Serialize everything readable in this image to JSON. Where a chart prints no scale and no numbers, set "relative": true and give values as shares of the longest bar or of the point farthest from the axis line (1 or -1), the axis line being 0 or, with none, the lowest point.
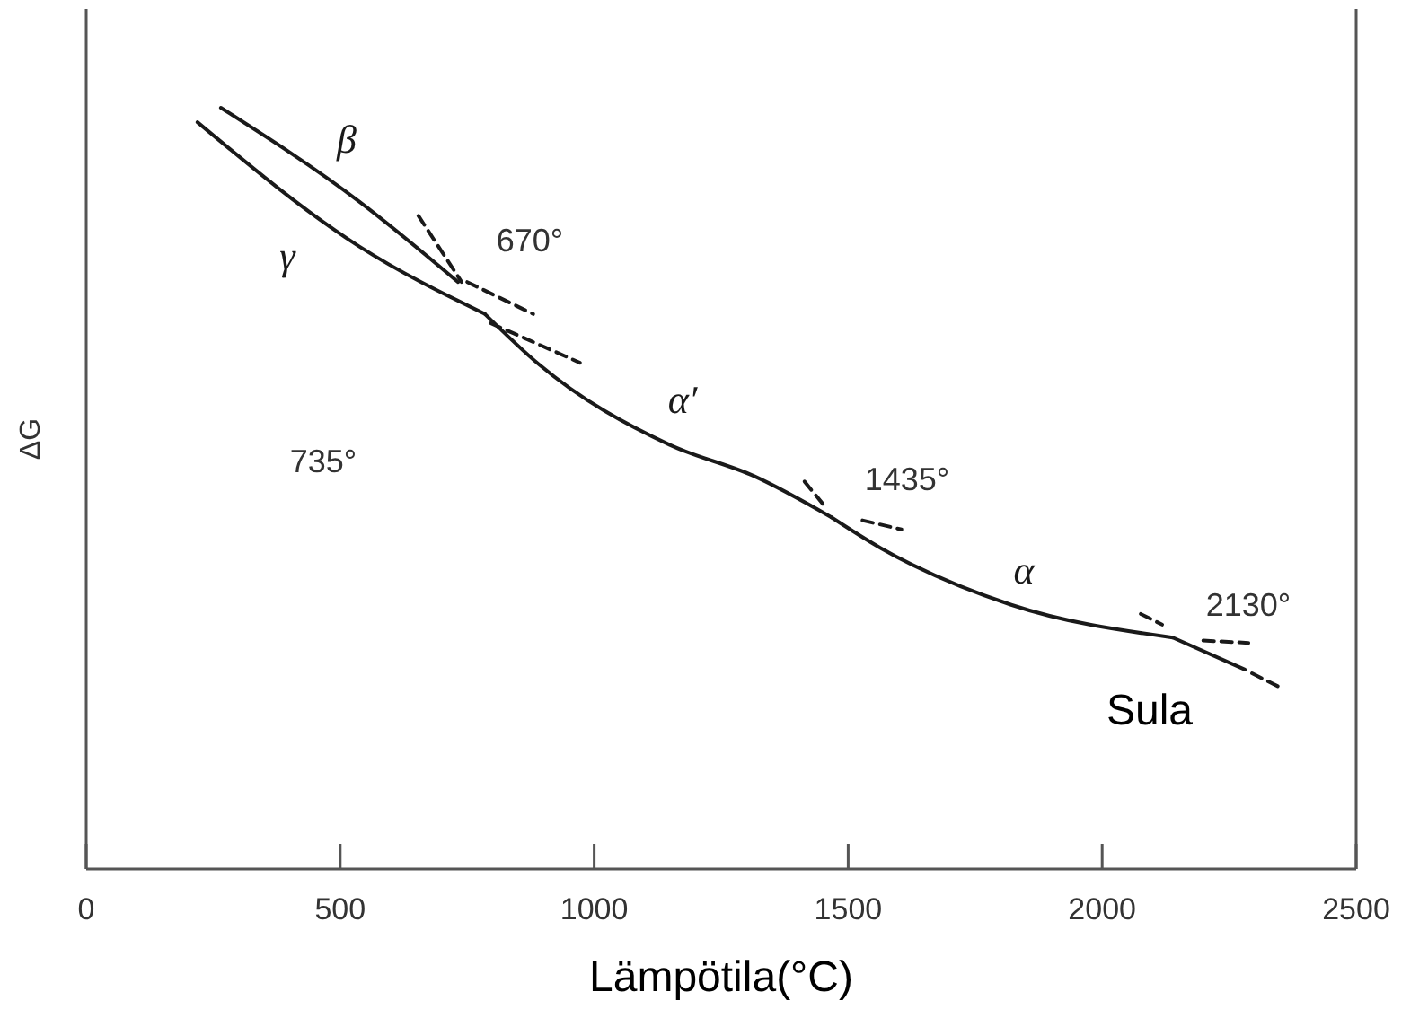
{
  "chart_data": {
    "type": "line",
    "relative": true,
    "xlabel": "Lämpötila(°C)",
    "ylabel": "ΔG",
    "xlim": [
      0,
      2500
    ],
    "xticks": [
      0,
      500,
      1000,
      1500,
      2000,
      2500
    ],
    "grid": false,
    "marker": "none",
    "series": [
      {
        "name": "β",
        "color": "#1a1a1a",
        "line_style": "solid",
        "x": [
          265,
          537,
          732
        ],
        "values": [
          1.0,
          0.877,
          0.771
        ]
      },
      {
        "name": "γ",
        "color": "#1a1a1a",
        "line_style": "solid",
        "x": [
          219,
          537,
          785
        ],
        "values": [
          0.981,
          0.818,
          0.729
        ]
      },
      {
        "name": "α′",
        "color": "#1a1a1a",
        "line_style": "solid",
        "x": [
          785,
          891,
          1149,
          1315,
          1467
        ],
        "values": [
          0.729,
          0.663,
          0.557,
          0.516,
          0.462
        ]
      },
      {
        "name": "α",
        "color": "#1a1a1a",
        "line_style": "solid",
        "x": [
          1467,
          1563,
          1821,
          2139
        ],
        "values": [
          0.462,
          0.422,
          0.347,
          0.304
        ]
      },
      {
        "name": "Sula",
        "color": "#1a1a1a",
        "line_style": "solid",
        "x": [
          2139,
          2281
        ],
        "values": [
          0.304,
          0.262
        ]
      },
      {
        "color": "#1a1a1a",
        "line_style": "dashed",
        "x": [
          654,
          739
        ],
        "values": [
          0.858,
          0.771
        ]
      },
      {
        "color": "#1a1a1a",
        "line_style": "dashed",
        "x": [
          750,
          880
        ],
        "values": [
          0.771,
          0.729
        ]
      },
      {
        "color": "#1a1a1a",
        "line_style": "dashed",
        "x": [
          796,
          972
        ],
        "values": [
          0.717,
          0.665
        ]
      },
      {
        "color": "#1a1a1a",
        "line_style": "dashed",
        "x": [
          1414,
          1457
        ],
        "values": [
          0.509,
          0.474
        ]
      },
      {
        "color": "#1a1a1a",
        "line_style": "dashed",
        "x": [
          1528,
          1605
        ],
        "values": [
          0.458,
          0.446
        ]
      },
      {
        "color": "#1a1a1a",
        "line_style": "dashed",
        "x": [
          2076,
          2118
        ],
        "values": [
          0.335,
          0.321
        ]
      },
      {
        "color": "#1a1a1a",
        "line_style": "dashed",
        "x": [
          2199,
          2288
        ],
        "values": [
          0.3,
          0.297
        ]
      },
      {
        "color": "#1a1a1a",
        "line_style": "dashed",
        "x": [
          2295,
          2352
        ],
        "values": [
          0.257,
          0.238
        ]
      }
    ],
    "annotations": [
      "670°",
      "735°",
      "1435°",
      "2130°"
    ]
  }
}
